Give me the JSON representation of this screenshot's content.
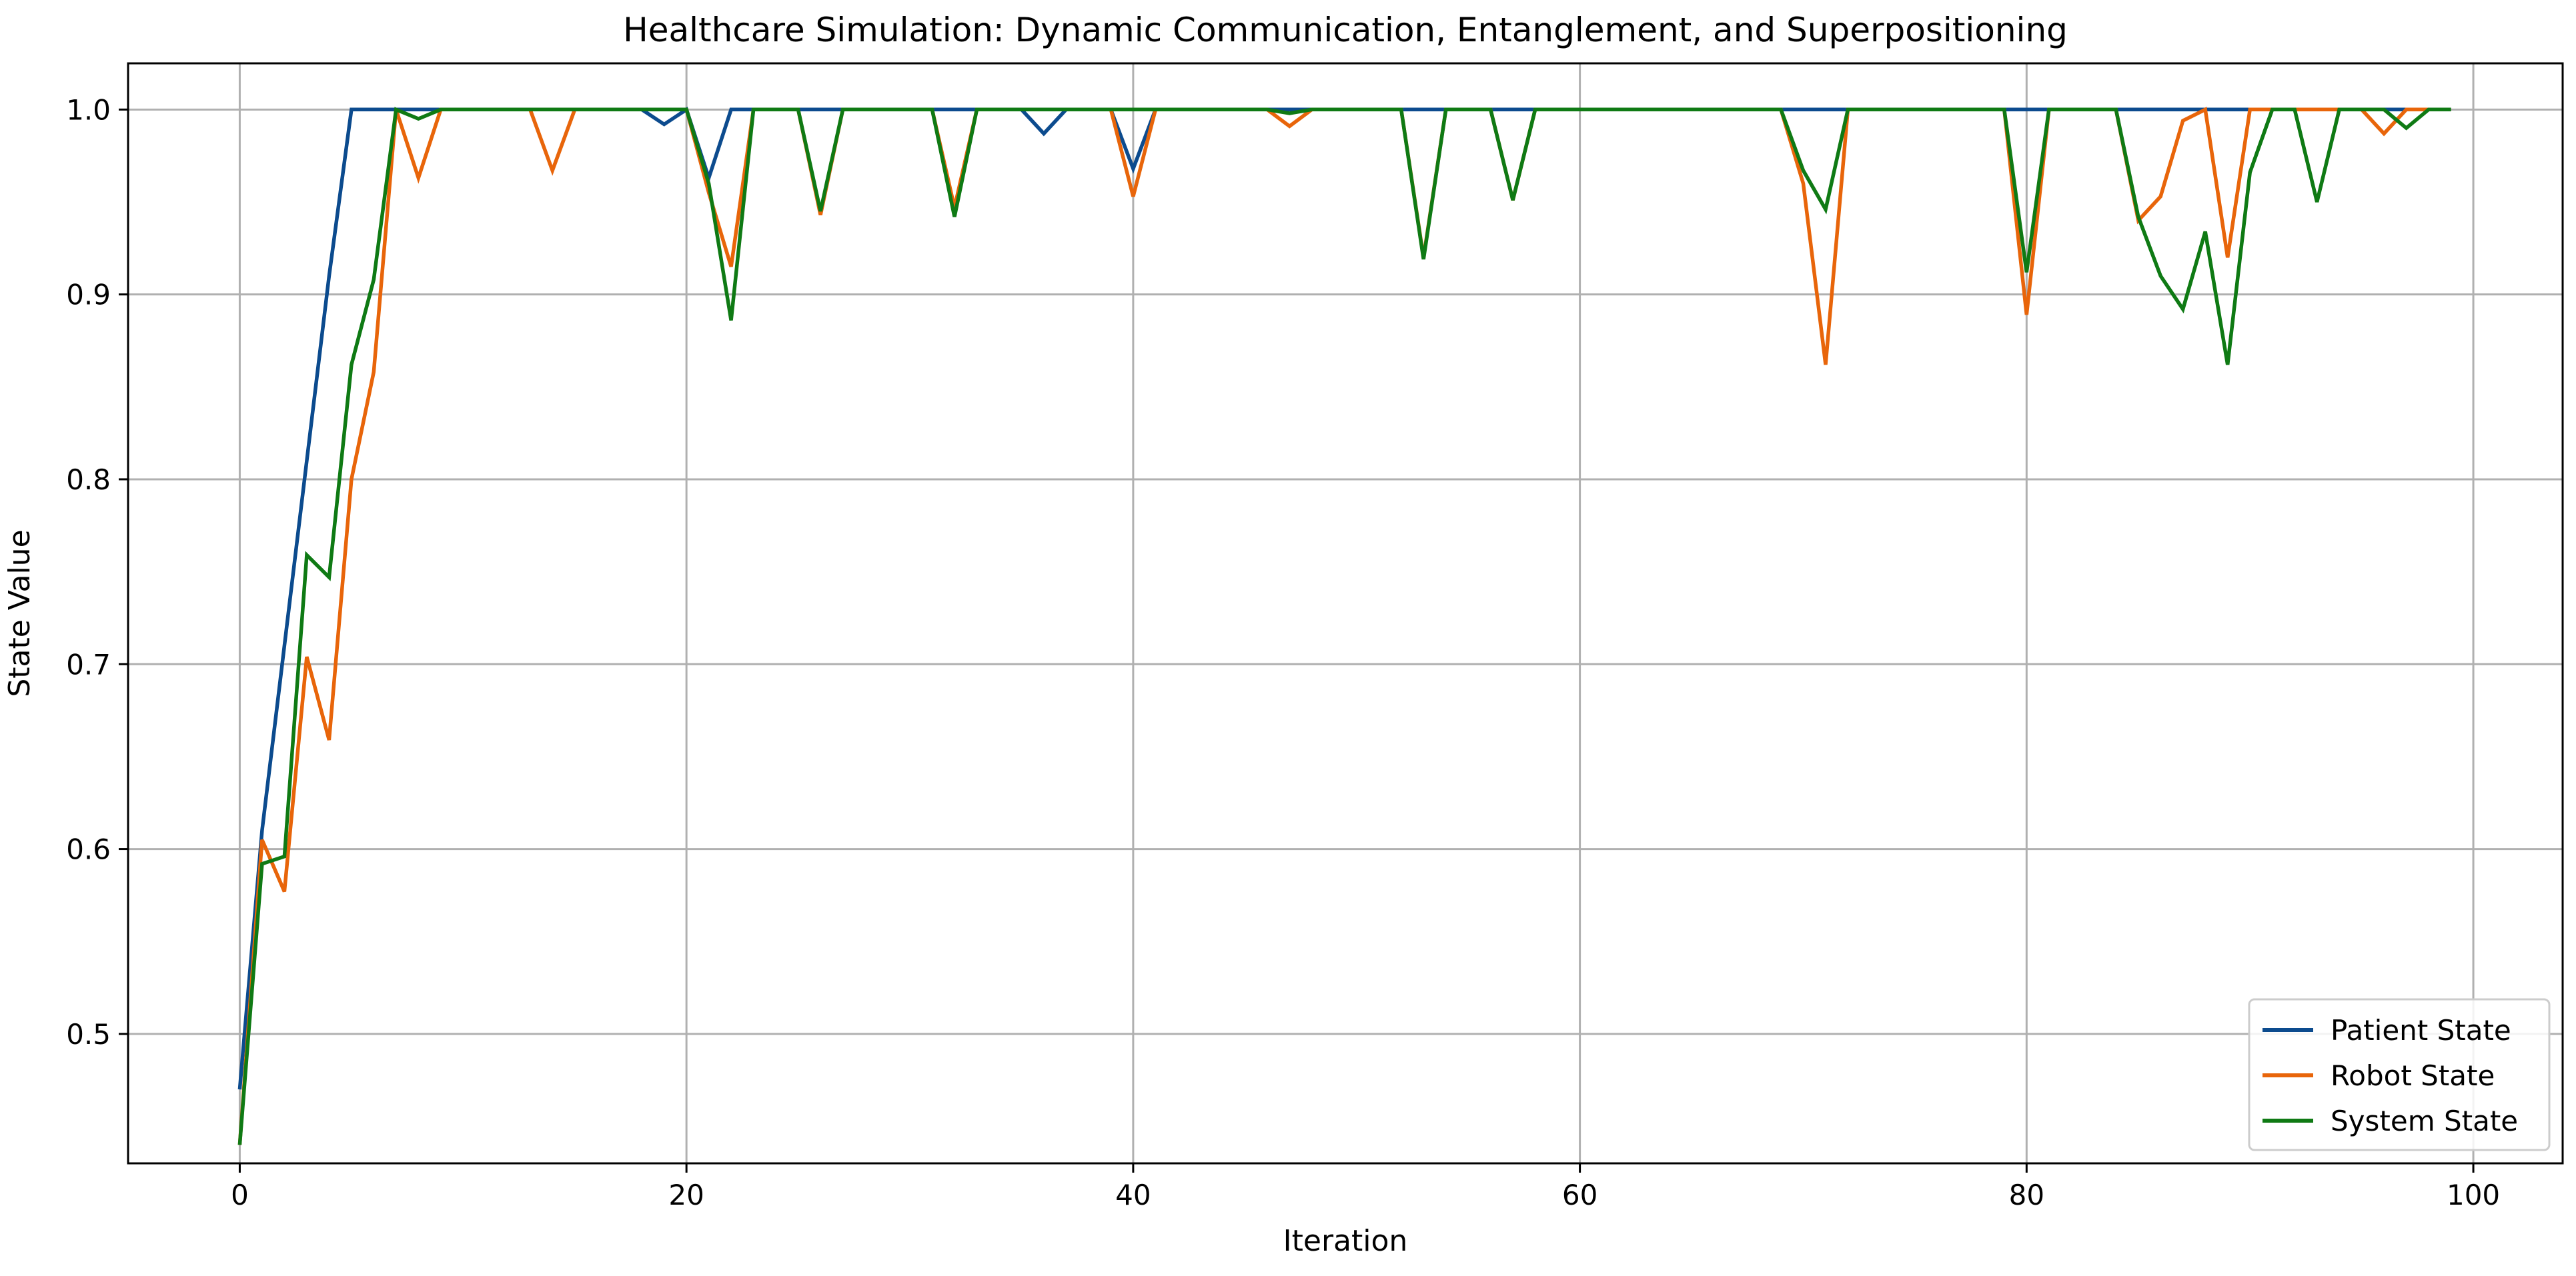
{
  "chart_data": {
    "type": "line",
    "title": "Healthcare Simulation: Dynamic Communication, Entanglement, and Superpositioning",
    "xlabel": "Iteration",
    "ylabel": "State Value",
    "xlim": [
      -5,
      104
    ],
    "ylim": [
      0.43,
      1.025
    ],
    "xticks": [
      0,
      20,
      40,
      60,
      80,
      100
    ],
    "yticks": [
      0.5,
      0.6,
      0.7,
      0.8,
      0.9,
      1.0
    ],
    "xtick_labels": [
      "0",
      "20",
      "40",
      "60",
      "80",
      "100"
    ],
    "ytick_labels": [
      "0.5",
      "0.6",
      "0.7",
      "0.8",
      "0.9",
      "1.0"
    ],
    "grid": true,
    "legend_position": "lower-right",
    "x": [
      0,
      1,
      2,
      3,
      4,
      5,
      6,
      7,
      8,
      9,
      10,
      11,
      12,
      13,
      14,
      15,
      16,
      17,
      18,
      19,
      20,
      21,
      22,
      23,
      24,
      25,
      26,
      27,
      28,
      29,
      30,
      31,
      32,
      33,
      34,
      35,
      36,
      37,
      38,
      39,
      40,
      41,
      42,
      43,
      44,
      45,
      46,
      47,
      48,
      49,
      50,
      51,
      52,
      53,
      54,
      55,
      56,
      57,
      58,
      59,
      60,
      61,
      62,
      63,
      64,
      65,
      66,
      67,
      68,
      69,
      70,
      71,
      72,
      73,
      74,
      75,
      76,
      77,
      78,
      79,
      80,
      81,
      82,
      83,
      84,
      85,
      86,
      87,
      88,
      89,
      90,
      91,
      92,
      93,
      94,
      95,
      96,
      97,
      98,
      99
    ],
    "series": [
      {
        "name": "Patient State",
        "color": "#0c4b8e",
        "values": [
          0.47,
          0.61,
          0.71,
          0.81,
          0.91,
          1.0,
          1.0,
          1.0,
          1.0,
          1.0,
          1.0,
          1.0,
          1.0,
          1.0,
          1.0,
          1.0,
          1.0,
          1.0,
          1.0,
          0.992,
          1.0,
          0.963,
          1.0,
          1.0,
          1.0,
          1.0,
          1.0,
          1.0,
          1.0,
          1.0,
          1.0,
          1.0,
          1.0,
          1.0,
          1.0,
          1.0,
          0.987,
          1.0,
          1.0,
          1.0,
          0.968,
          1.0,
          1.0,
          1.0,
          1.0,
          1.0,
          1.0,
          1.0,
          1.0,
          1.0,
          1.0,
          1.0,
          1.0,
          1.0,
          1.0,
          1.0,
          1.0,
          1.0,
          1.0,
          1.0,
          1.0,
          1.0,
          1.0,
          1.0,
          1.0,
          1.0,
          1.0,
          1.0,
          1.0,
          1.0,
          1.0,
          1.0,
          1.0,
          1.0,
          1.0,
          1.0,
          1.0,
          1.0,
          1.0,
          1.0,
          1.0,
          1.0,
          1.0,
          1.0,
          1.0,
          1.0,
          1.0,
          1.0,
          1.0,
          1.0,
          1.0,
          1.0,
          1.0,
          1.0,
          1.0,
          1.0,
          1.0,
          1.0,
          1.0,
          1.0
        ]
      },
      {
        "name": "Robot State",
        "color": "#e8650a",
        "values": [
          0.44,
          0.605,
          0.577,
          0.704,
          0.659,
          0.8,
          0.858,
          1.0,
          0.963,
          1.0,
          1.0,
          1.0,
          1.0,
          1.0,
          0.967,
          1.0,
          1.0,
          1.0,
          1.0,
          1.0,
          1.0,
          0.955,
          0.915,
          1.0,
          1.0,
          1.0,
          0.943,
          1.0,
          1.0,
          1.0,
          1.0,
          1.0,
          0.947,
          1.0,
          1.0,
          1.0,
          1.0,
          1.0,
          1.0,
          1.0,
          0.953,
          1.0,
          1.0,
          1.0,
          1.0,
          1.0,
          1.0,
          0.991,
          1.0,
          1.0,
          1.0,
          1.0,
          1.0,
          0.92,
          1.0,
          1.0,
          1.0,
          0.951,
          1.0,
          1.0,
          1.0,
          1.0,
          1.0,
          1.0,
          1.0,
          1.0,
          1.0,
          1.0,
          1.0,
          1.0,
          0.96,
          0.862,
          1.0,
          1.0,
          1.0,
          1.0,
          1.0,
          1.0,
          1.0,
          1.0,
          0.889,
          1.0,
          1.0,
          1.0,
          1.0,
          0.94,
          0.953,
          0.994,
          1.0,
          0.92,
          1.0,
          1.0,
          1.0,
          1.0,
          1.0,
          1.0,
          0.987,
          1.0,
          1.0,
          1.0
        ]
      },
      {
        "name": "System State",
        "color": "#0f7a14",
        "values": [
          0.44,
          0.592,
          0.596,
          0.759,
          0.747,
          0.862,
          0.908,
          1.0,
          0.995,
          1.0,
          1.0,
          1.0,
          1.0,
          1.0,
          1.0,
          1.0,
          1.0,
          1.0,
          1.0,
          1.0,
          1.0,
          0.96,
          0.886,
          1.0,
          1.0,
          1.0,
          0.945,
          1.0,
          1.0,
          1.0,
          1.0,
          1.0,
          0.942,
          1.0,
          1.0,
          1.0,
          1.0,
          1.0,
          1.0,
          1.0,
          1.0,
          1.0,
          1.0,
          1.0,
          1.0,
          1.0,
          1.0,
          0.998,
          1.0,
          1.0,
          1.0,
          1.0,
          1.0,
          0.919,
          1.0,
          1.0,
          1.0,
          0.951,
          1.0,
          1.0,
          1.0,
          1.0,
          1.0,
          1.0,
          1.0,
          1.0,
          1.0,
          1.0,
          1.0,
          1.0,
          0.967,
          0.946,
          1.0,
          1.0,
          1.0,
          1.0,
          1.0,
          1.0,
          1.0,
          1.0,
          0.912,
          1.0,
          1.0,
          1.0,
          1.0,
          0.942,
          0.91,
          0.892,
          0.934,
          0.862,
          0.966,
          1.0,
          1.0,
          0.95,
          1.0,
          1.0,
          1.0,
          0.99,
          1.0,
          1.0
        ]
      }
    ]
  }
}
